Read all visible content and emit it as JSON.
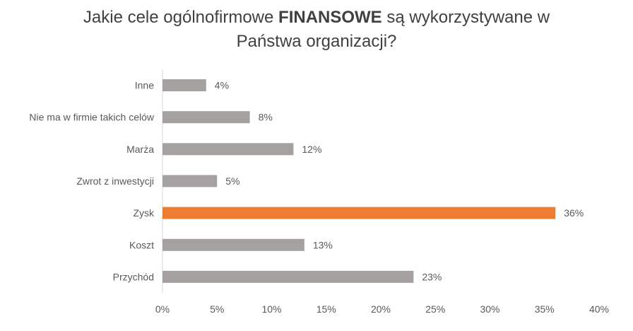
{
  "chart_data": {
    "type": "bar",
    "orientation": "horizontal",
    "title": {
      "line1_before": "Jakie cele ogólnofirmowe ",
      "line1_bold": "FINANSOWE",
      "line1_after": " są wykorzystywane w",
      "line2": "Państwa organizacji?"
    },
    "categories": [
      "Inne",
      "Nie ma w firmie takich celów",
      "Marża",
      "Zwrot z inwestycji",
      "Zysk",
      "Koszt",
      "Przychód"
    ],
    "values": [
      4,
      8,
      12,
      5,
      36,
      13,
      23
    ],
    "data_labels": [
      "4%",
      "8%",
      "12%",
      "5%",
      "36%",
      "13%",
      "23%"
    ],
    "highlight_category": "Zysk",
    "colors": {
      "default_bar": "#a5a1a1",
      "highlight_bar": "#ed7d31",
      "axis": "#d9d9d9",
      "text": "#595959"
    },
    "xlim": [
      0,
      40
    ],
    "xticks": [
      0,
      5,
      10,
      15,
      20,
      25,
      30,
      35,
      40
    ],
    "xtick_labels": [
      "0%",
      "5%",
      "10%",
      "15%",
      "20%",
      "25%",
      "30%",
      "35%",
      "40%"
    ],
    "grid": false,
    "legend": "none",
    "xlabel": "",
    "ylabel": ""
  }
}
